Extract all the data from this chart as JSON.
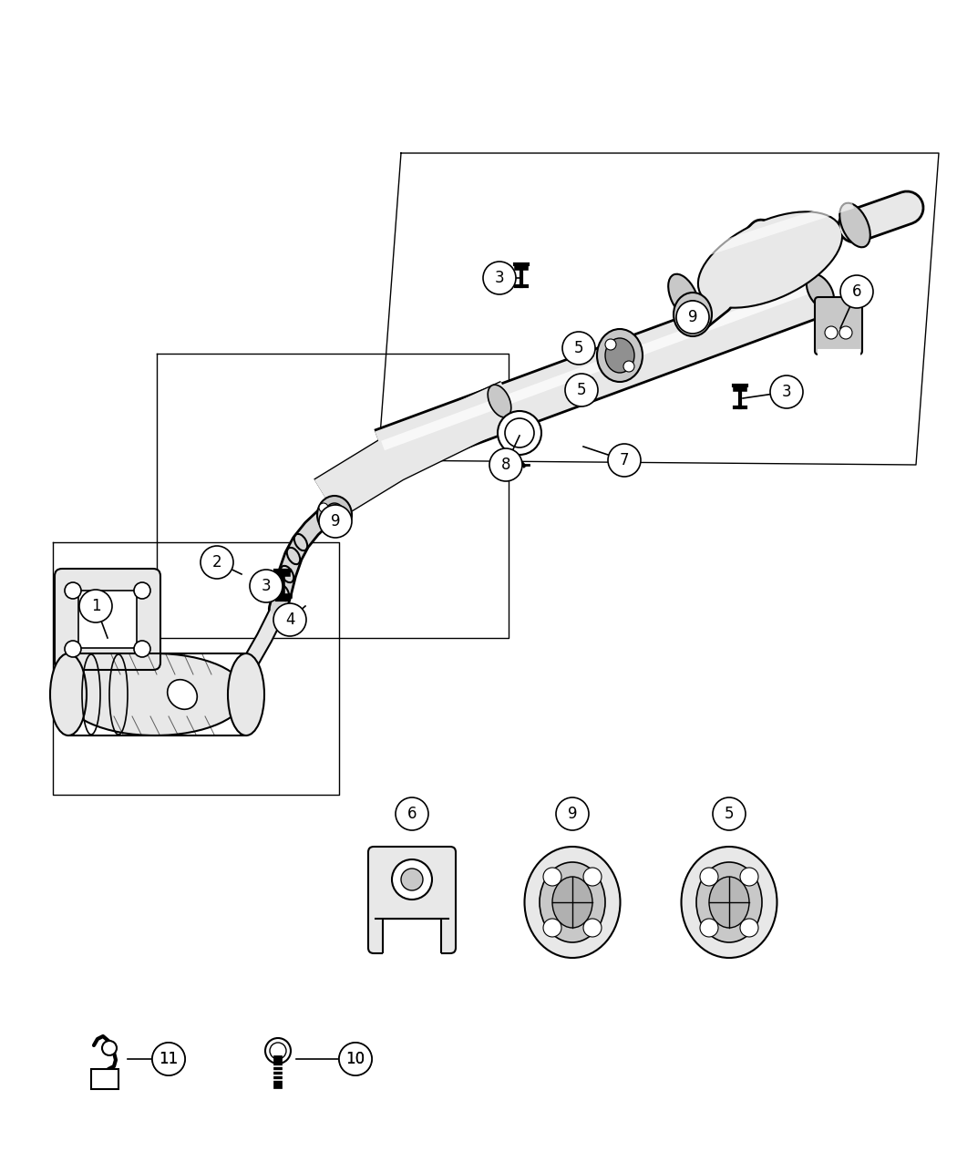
{
  "bg_color": "#ffffff",
  "line_color": "#000000",
  "gray_fill": "#c8c8c8",
  "light_gray": "#e8e8e8",
  "dark_gray": "#888888"
}
